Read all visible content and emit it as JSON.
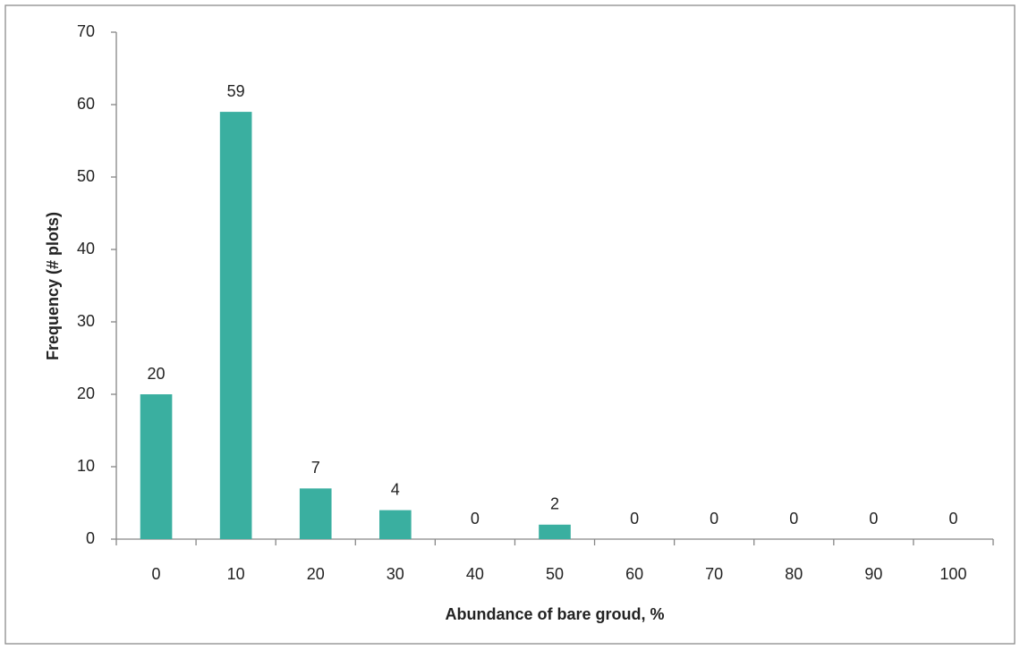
{
  "chart_data": {
    "type": "bar",
    "x_label": "Abundance of bare groud, %",
    "y_label": "Frequency (# plots)",
    "categories": [
      "0",
      "10",
      "20",
      "30",
      "40",
      "50",
      "60",
      "70",
      "80",
      "90",
      "100"
    ],
    "values": [
      20,
      59,
      7,
      4,
      0,
      2,
      0,
      0,
      0,
      0,
      0
    ],
    "color": "#3aafa0",
    "ylim": [
      0,
      70
    ],
    "yticks": [
      0,
      10,
      20,
      30,
      40,
      50,
      60,
      70
    ],
    "grid": false,
    "data_labels": true
  }
}
